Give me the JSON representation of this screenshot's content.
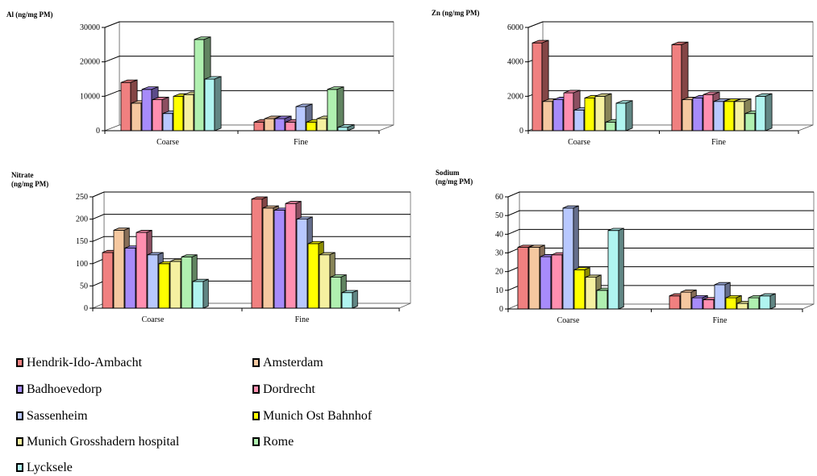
{
  "legend": [
    {
      "label": "Hendrik-Ido-Ambacht",
      "color": "#f08080"
    },
    {
      "label": "Amsterdam",
      "color": "#f5c8a0"
    },
    {
      "label": "Badhoevedorp",
      "color": "#a78bfa"
    },
    {
      "label": "Dordrecht",
      "color": "#ff8fb0"
    },
    {
      "label": "Sassenheim",
      "color": "#b8c8ff"
    },
    {
      "label": "Munich Ost Bahnhof",
      "color": "#ffff00"
    },
    {
      "label": "Munich Grosshadern hospital",
      "color": "#f5f0a0"
    },
    {
      "label": "Rome",
      "color": "#b0f0b0"
    },
    {
      "label": "Lycksele",
      "color": "#b0f4f0"
    }
  ],
  "chart_data": [
    {
      "type": "bar",
      "ytitle": "Al (ng/mg PM)",
      "categories": [
        "Coarse",
        "Fine"
      ],
      "ylim": [
        0,
        30000
      ],
      "yticks": [
        0,
        10000,
        20000,
        30000
      ],
      "grid": true,
      "series": [
        {
          "name": "Hendrik-Ido-Ambacht",
          "values": [
            14000,
            2500
          ]
        },
        {
          "name": "Amsterdam",
          "values": [
            8000,
            3500
          ]
        },
        {
          "name": "Badhoevedorp",
          "values": [
            12000,
            3500
          ]
        },
        {
          "name": "Dordrecht",
          "values": [
            9000,
            2500
          ]
        },
        {
          "name": "Sassenheim",
          "values": [
            5000,
            7000
          ]
        },
        {
          "name": "Munich Ost Bahnhof",
          "values": [
            10000,
            2500
          ]
        },
        {
          "name": "Munich Grosshadern hospital",
          "values": [
            10500,
            3500
          ]
        },
        {
          "name": "Rome",
          "values": [
            26500,
            12000
          ]
        },
        {
          "name": "Lycksele",
          "values": [
            15000,
            1000
          ]
        }
      ]
    },
    {
      "type": "bar",
      "ytitle": "Zn (ng/mg PM)",
      "categories": [
        "Coarse",
        "Fine"
      ],
      "ylim": [
        0,
        6000
      ],
      "yticks": [
        0,
        2000,
        4000,
        6000
      ],
      "grid": true,
      "series": [
        {
          "name": "Hendrik-Ido-Ambacht",
          "values": [
            5100,
            5000
          ]
        },
        {
          "name": "Amsterdam",
          "values": [
            1700,
            1800
          ]
        },
        {
          "name": "Badhoevedorp",
          "values": [
            1800,
            1900
          ]
        },
        {
          "name": "Dordrecht",
          "values": [
            2200,
            2100
          ]
        },
        {
          "name": "Sassenheim",
          "values": [
            1200,
            1700
          ]
        },
        {
          "name": "Munich Ost Bahnhof",
          "values": [
            1900,
            1700
          ]
        },
        {
          "name": "Munich Grosshadern hospital",
          "values": [
            2000,
            1700
          ]
        },
        {
          "name": "Rome",
          "values": [
            500,
            1000
          ]
        },
        {
          "name": "Lycksele",
          "values": [
            1600,
            2000
          ]
        }
      ]
    },
    {
      "type": "bar",
      "ytitle": "Nitrate\n(ng/mg PM)",
      "categories": [
        "Coarse",
        "Fine"
      ],
      "ylim": [
        0,
        250
      ],
      "yticks": [
        0,
        50,
        100,
        150,
        200,
        250
      ],
      "grid": true,
      "series": [
        {
          "name": "Hendrik-Ido-Ambacht",
          "values": [
            125,
            245
          ]
        },
        {
          "name": "Amsterdam",
          "values": [
            175,
            225
          ]
        },
        {
          "name": "Badhoevedorp",
          "values": [
            135,
            220
          ]
        },
        {
          "name": "Dordrecht",
          "values": [
            170,
            235
          ]
        },
        {
          "name": "Sassenheim",
          "values": [
            120,
            200
          ]
        },
        {
          "name": "Munich Ost Bahnhof",
          "values": [
            100,
            145
          ]
        },
        {
          "name": "Munich Grosshadern hospital",
          "values": [
            105,
            120
          ]
        },
        {
          "name": "Rome",
          "values": [
            115,
            70
          ]
        },
        {
          "name": "Lycksele",
          "values": [
            60,
            35
          ]
        }
      ]
    },
    {
      "type": "bar",
      "ytitle": "Sodium\n(ng/mg PM)",
      "categories": [
        "Coarse",
        "Fine"
      ],
      "ylim": [
        0,
        60
      ],
      "yticks": [
        0,
        10,
        20,
        30,
        40,
        50,
        60
      ],
      "grid": true,
      "series": [
        {
          "name": "Hendrik-Ido-Ambacht",
          "values": [
            33,
            7
          ]
        },
        {
          "name": "Amsterdam",
          "values": [
            33,
            9
          ]
        },
        {
          "name": "Badhoevedorp",
          "values": [
            28,
            6
          ]
        },
        {
          "name": "Dordrecht",
          "values": [
            29,
            5
          ]
        },
        {
          "name": "Sassenheim",
          "values": [
            54,
            13
          ]
        },
        {
          "name": "Munich Ost Bahnhof",
          "values": [
            21,
            6
          ]
        },
        {
          "name": "Munich Grosshadern hospital",
          "values": [
            17,
            3
          ]
        },
        {
          "name": "Rome",
          "values": [
            10,
            6
          ]
        },
        {
          "name": "Lycksele",
          "values": [
            42,
            7
          ]
        }
      ]
    }
  ]
}
